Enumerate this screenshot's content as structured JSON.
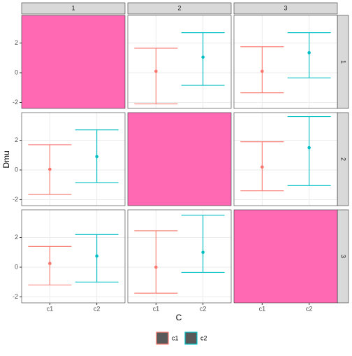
{
  "chart_data": {
    "type": "facet_errorbar",
    "x_label": "C",
    "y_label": "Dmu",
    "col_labels": [
      "1",
      "2",
      "3"
    ],
    "row_labels": [
      "1",
      "2",
      "3"
    ],
    "categories": [
      "c1",
      "c2"
    ],
    "colors": [
      "#f8766d",
      "#00bfc4"
    ],
    "ylim": [
      -2.4,
      3.86
    ],
    "yticks": [
      -2,
      0,
      2
    ],
    "grid": true,
    "diagonal_fill": "#ff69b4",
    "panels": [
      [
        null,
        {
          "values": [
            0.1,
            1.05
          ],
          "lower": [
            -2.1,
            -0.85
          ],
          "upper": [
            1.65,
            2.7
          ]
        },
        {
          "values": [
            0.1,
            1.35
          ],
          "lower": [
            -1.35,
            -0.35
          ],
          "upper": [
            1.75,
            2.7
          ]
        }
      ],
      [
        {
          "values": [
            0.05,
            0.9
          ],
          "lower": [
            -1.65,
            -0.85
          ],
          "upper": [
            1.7,
            2.7
          ]
        },
        null,
        {
          "values": [
            0.2,
            1.5
          ],
          "lower": [
            -1.4,
            -1.05
          ],
          "upper": [
            1.9,
            3.6
          ]
        }
      ],
      [
        {
          "values": [
            0.25,
            0.75
          ],
          "lower": [
            -1.2,
            -1.0
          ],
          "upper": [
            1.4,
            2.2
          ]
        },
        {
          "values": [
            0.0,
            1.0
          ],
          "lower": [
            -1.75,
            -0.35
          ],
          "upper": [
            2.45,
            3.5
          ]
        },
        null
      ]
    ]
  }
}
